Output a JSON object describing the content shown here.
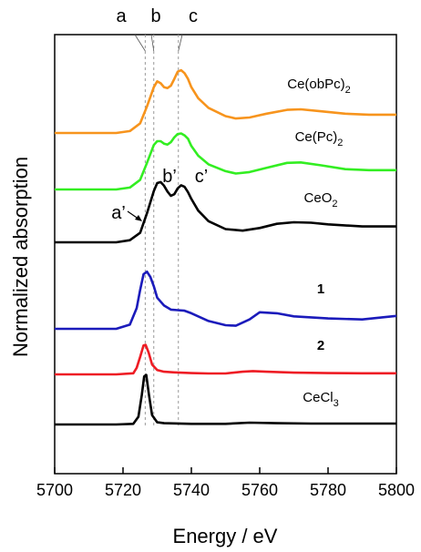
{
  "chart_data": {
    "type": "line",
    "xlabel": "Energy / eV",
    "ylabel": "Normalized absorption",
    "xlim": [
      5700,
      5800
    ],
    "xticks": [
      5700,
      5720,
      5740,
      5760,
      5780,
      5800
    ],
    "grid": false,
    "legend": "none",
    "reference_lines": [
      {
        "label": "a",
        "x": 5726.5
      },
      {
        "label": "b",
        "x": 5729.0
      },
      {
        "label": "c",
        "x": 5736.2
      }
    ],
    "peak_annotations": [
      {
        "label": "a’",
        "series": "CeO2",
        "x": 5726.5
      },
      {
        "label": "b’",
        "series": "CeO2",
        "x": 5730.5
      },
      {
        "label": "c’",
        "series": "CeO2",
        "x": 5737.0
      }
    ],
    "series": [
      {
        "name": "Ce(obPc)2",
        "label_main": "Ce(obPc)",
        "label_sub": "2",
        "bold": false,
        "color": "#F7941D",
        "x": [
          5700,
          5718,
          5722,
          5725,
          5727,
          5729,
          5730,
          5731,
          5732,
          5733,
          5734,
          5735,
          5736,
          5737,
          5738,
          5739,
          5740,
          5742,
          5745,
          5750,
          5753,
          5757,
          5762,
          5768,
          5772,
          5778,
          5785,
          5792,
          5800
        ],
        "y": [
          0.0,
          0.0,
          0.04,
          0.2,
          0.55,
          0.95,
          1.07,
          1.03,
          0.95,
          0.93,
          0.98,
          1.12,
          1.27,
          1.3,
          1.24,
          1.12,
          0.95,
          0.72,
          0.52,
          0.35,
          0.3,
          0.32,
          0.4,
          0.48,
          0.49,
          0.45,
          0.4,
          0.38,
          0.38
        ]
      },
      {
        "name": "Ce(Pc)2",
        "label_main": "Ce(Pc)",
        "label_sub": "2",
        "bold": false,
        "color": "#33EE22",
        "x": [
          5700,
          5718,
          5722,
          5725,
          5727,
          5729,
          5730,
          5731,
          5732,
          5733,
          5734,
          5735,
          5736,
          5737,
          5738,
          5739,
          5740,
          5742,
          5745,
          5750,
          5753,
          5757,
          5762,
          5768,
          5772,
          5778,
          5785,
          5792,
          5800
        ],
        "y": [
          0.0,
          0.0,
          0.04,
          0.2,
          0.55,
          0.92,
          1.0,
          1.0,
          0.95,
          0.93,
          0.98,
          1.08,
          1.15,
          1.16,
          1.12,
          1.05,
          0.9,
          0.7,
          0.52,
          0.38,
          0.33,
          0.36,
          0.45,
          0.55,
          0.56,
          0.5,
          0.42,
          0.4,
          0.4
        ]
      },
      {
        "name": "CeO2",
        "label_main": "CeO",
        "label_sub": "2",
        "bold": false,
        "color": "#000000",
        "x": [
          5700,
          5718,
          5722,
          5725,
          5727,
          5729,
          5730,
          5731,
          5732,
          5733,
          5734,
          5735,
          5736,
          5737,
          5738,
          5739,
          5740,
          5742,
          5745,
          5750,
          5755,
          5760,
          5765,
          5770,
          5775,
          5780,
          5790,
          5800
        ],
        "y": [
          0.0,
          0.0,
          0.04,
          0.18,
          0.55,
          0.97,
          1.12,
          1.14,
          1.07,
          0.96,
          0.88,
          0.91,
          1.02,
          1.08,
          1.05,
          0.95,
          0.82,
          0.6,
          0.4,
          0.25,
          0.22,
          0.27,
          0.35,
          0.38,
          0.37,
          0.34,
          0.3,
          0.3
        ]
      },
      {
        "name": "1",
        "label_main": "1",
        "label_sub": "",
        "bold": true,
        "color": "#1B1BBB",
        "x": [
          5700,
          5718,
          5722,
          5724,
          5725,
          5726,
          5727,
          5728,
          5729,
          5730,
          5732,
          5734,
          5736,
          5738,
          5740,
          5745,
          5750,
          5753,
          5757,
          5760,
          5765,
          5770,
          5780,
          5790,
          5800
        ],
        "y": [
          0.0,
          0.0,
          0.08,
          0.4,
          0.75,
          1.05,
          1.1,
          1.0,
          0.82,
          0.6,
          0.45,
          0.37,
          0.36,
          0.35,
          0.3,
          0.15,
          0.07,
          0.06,
          0.18,
          0.32,
          0.3,
          0.24,
          0.2,
          0.18,
          0.25
        ]
      },
      {
        "name": "2",
        "label_main": "2",
        "label_sub": "",
        "bold": true,
        "color": "#EE1C24",
        "x": [
          5700,
          5718,
          5723,
          5724,
          5725,
          5726,
          5726.6,
          5727.5,
          5728.5,
          5730,
          5732,
          5735,
          5740,
          5745,
          5750,
          5755,
          5758,
          5762,
          5770,
          5780,
          5790,
          5800
        ],
        "y": [
          0.0,
          0.0,
          0.05,
          0.3,
          0.8,
          1.32,
          1.35,
          1.0,
          0.45,
          0.2,
          0.12,
          0.09,
          0.06,
          0.04,
          0.04,
          0.12,
          0.15,
          0.12,
          0.08,
          0.06,
          0.05,
          0.05
        ]
      },
      {
        "name": "CeCl3",
        "label_main": "CeCl",
        "label_sub": "3",
        "bold": false,
        "color": "#000000",
        "x": [
          5700,
          5718,
          5723,
          5724.5,
          5725.5,
          5726.2,
          5726.8,
          5727.6,
          5728.5,
          5730,
          5732,
          5740,
          5750,
          5757,
          5765,
          5775,
          5785,
          5800
        ],
        "y": [
          0.0,
          0.0,
          0.02,
          0.25,
          0.95,
          1.55,
          1.6,
          0.95,
          0.3,
          0.07,
          0.04,
          0.02,
          0.02,
          0.06,
          0.04,
          0.03,
          0.03,
          0.03
        ]
      }
    ]
  }
}
